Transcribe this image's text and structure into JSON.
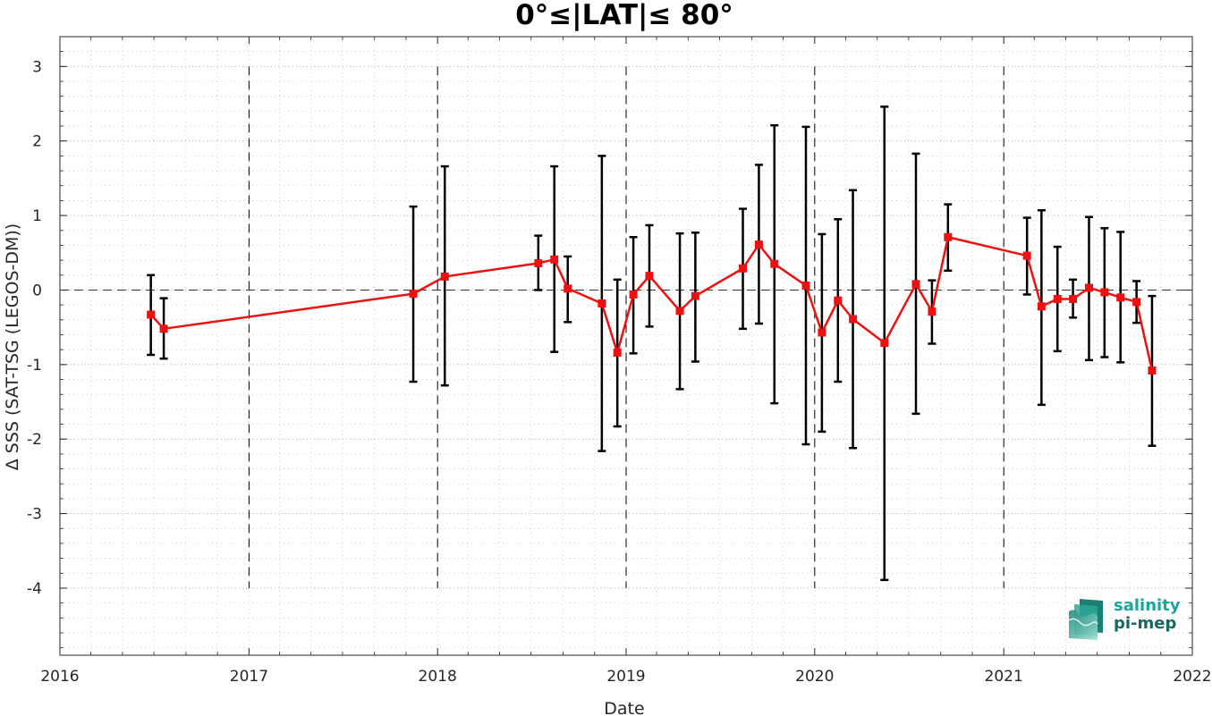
{
  "chart_data": {
    "type": "line",
    "title": "0°≤|LAT|≤ 80°",
    "xlabel": "Date",
    "ylabel": "Δ SSS (SAT-TSG (LEGOS-DM))",
    "xlim": [
      "2016-01-01",
      "2022-01-01"
    ],
    "ylim": [
      -4.9,
      3.4
    ],
    "x_ticks": [
      "2016-01-01",
      "2017-01-01",
      "2018-01-01",
      "2019-01-01",
      "2020-01-01",
      "2021-01-01",
      "2022-01-01"
    ],
    "x_tick_labels": [
      "2016",
      "2017",
      "2018",
      "2019",
      "2020",
      "2021",
      "2022"
    ],
    "y_ticks": [
      -4,
      -3,
      -2,
      -1,
      0,
      1,
      2,
      3
    ],
    "y_tick_labels": [
      "-4",
      "-3",
      "-2",
      "-1",
      "0",
      "1",
      "2",
      "3"
    ],
    "grid": true,
    "year_markers": [
      "2017-01-01",
      "2018-01-01",
      "2019-01-01",
      "2020-01-01",
      "2021-01-01"
    ],
    "reference_line": 0,
    "series": [
      {
        "color": "#ee1111",
        "marker": "square",
        "points": [
          {
            "x": "2016-06-25",
            "y": -0.33,
            "lo": -0.87,
            "hi": 0.2
          },
          {
            "x": "2016-07-20",
            "y": -0.52,
            "lo": -0.92,
            "hi": -0.11
          },
          {
            "x": "2017-11-15",
            "y": -0.05,
            "lo": -1.23,
            "hi": 1.12
          },
          {
            "x": "2018-01-15",
            "y": 0.18,
            "lo": -1.28,
            "hi": 1.66
          },
          {
            "x": "2018-07-15",
            "y": 0.36,
            "lo": 0.0,
            "hi": 0.73
          },
          {
            "x": "2018-08-15",
            "y": 0.41,
            "lo": -0.83,
            "hi": 1.66
          },
          {
            "x": "2018-09-10",
            "y": 0.02,
            "lo": -0.43,
            "hi": 0.45
          },
          {
            "x": "2018-11-15",
            "y": -0.18,
            "lo": -2.16,
            "hi": 1.8
          },
          {
            "x": "2018-12-15",
            "y": -0.84,
            "lo": -1.83,
            "hi": 0.14
          },
          {
            "x": "2019-01-15",
            "y": -0.06,
            "lo": -0.85,
            "hi": 0.71
          },
          {
            "x": "2019-02-15",
            "y": 0.19,
            "lo": -0.49,
            "hi": 0.87
          },
          {
            "x": "2019-04-15",
            "y": -0.28,
            "lo": -1.33,
            "hi": 0.76
          },
          {
            "x": "2019-05-15",
            "y": -0.08,
            "lo": -0.96,
            "hi": 0.77
          },
          {
            "x": "2019-08-15",
            "y": 0.29,
            "lo": -0.52,
            "hi": 1.09
          },
          {
            "x": "2019-09-15",
            "y": 0.61,
            "lo": -0.45,
            "hi": 1.68
          },
          {
            "x": "2019-10-15",
            "y": 0.35,
            "lo": -1.52,
            "hi": 2.21
          },
          {
            "x": "2019-12-15",
            "y": 0.06,
            "lo": -2.07,
            "hi": 2.19
          },
          {
            "x": "2020-01-15",
            "y": -0.57,
            "lo": -1.9,
            "hi": 0.75
          },
          {
            "x": "2020-02-15",
            "y": -0.14,
            "lo": -1.23,
            "hi": 0.95
          },
          {
            "x": "2020-03-15",
            "y": -0.39,
            "lo": -2.12,
            "hi": 1.34
          },
          {
            "x": "2020-05-15",
            "y": -0.71,
            "lo": -3.89,
            "hi": 2.46
          },
          {
            "x": "2020-07-15",
            "y": 0.08,
            "lo": -1.66,
            "hi": 1.83
          },
          {
            "x": "2020-08-15",
            "y": -0.29,
            "lo": -0.72,
            "hi": 0.13
          },
          {
            "x": "2020-09-15",
            "y": 0.71,
            "lo": 0.26,
            "hi": 1.15
          },
          {
            "x": "2021-02-15",
            "y": 0.46,
            "lo": -0.06,
            "hi": 0.97
          },
          {
            "x": "2021-03-15",
            "y": -0.22,
            "lo": -1.54,
            "hi": 1.07
          },
          {
            "x": "2021-04-15",
            "y": -0.12,
            "lo": -0.82,
            "hi": 0.58
          },
          {
            "x": "2021-05-15",
            "y": -0.12,
            "lo": -0.37,
            "hi": 0.14
          },
          {
            "x": "2021-06-15",
            "y": 0.03,
            "lo": -0.94,
            "hi": 0.98
          },
          {
            "x": "2021-07-15",
            "y": -0.03,
            "lo": -0.9,
            "hi": 0.83
          },
          {
            "x": "2021-08-15",
            "y": -0.1,
            "lo": -0.97,
            "hi": 0.78
          },
          {
            "x": "2021-09-15",
            "y": -0.16,
            "lo": -0.44,
            "hi": 0.12
          },
          {
            "x": "2021-10-15",
            "y": -1.08,
            "lo": -2.09,
            "hi": -0.08
          }
        ]
      }
    ],
    "errorbar_color": "#000000"
  },
  "logo": {
    "line1": "salinity",
    "line2": "pi-mep"
  }
}
